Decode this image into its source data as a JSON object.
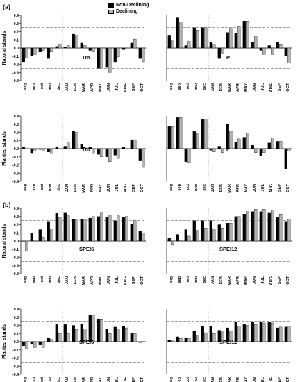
{
  "legend": {
    "non_declining": "Non-Declining",
    "declining": "Declining"
  },
  "section_labels": {
    "a": "(a)",
    "b": "(b)"
  },
  "colors": {
    "non_declining": "#000000",
    "declining": "#b3b3b3",
    "reference_line": "#444444",
    "axis": "#000000"
  },
  "chart_data": [
    {
      "type": "bar",
      "panel": "a-natural-left",
      "ylabel": "Natural stands",
      "annotation": "Tm",
      "categories": [
        "aug",
        "sep",
        "oct",
        "nov",
        "dec",
        "JAN",
        "FEB",
        "MAR",
        "APR",
        "MAY",
        "JUN",
        "JUL",
        "AUG",
        "SEP",
        "OCT"
      ],
      "series": [
        {
          "name": "Non-Declining",
          "values": [
            -0.17,
            -0.1,
            -0.05,
            -0.13,
            0.02,
            0.01,
            0.17,
            0.06,
            -0.03,
            -0.25,
            -0.24,
            -0.17,
            -0.02,
            0.06,
            -0.13
          ]
        },
        {
          "name": "Declining",
          "values": [
            -0.12,
            -0.08,
            -0.03,
            -0.05,
            0.05,
            0.03,
            0.16,
            0.03,
            -0.05,
            -0.26,
            -0.3,
            -0.11,
            -0.01,
            0.11,
            -0.17
          ]
        }
      ],
      "ylim": [
        -0.4,
        0.4
      ],
      "yticks": [
        -0.4,
        -0.3,
        -0.2,
        -0.1,
        0.0,
        0.1,
        0.2,
        0.3,
        0.4
      ],
      "reference_lines": [
        0.25,
        -0.25
      ]
    },
    {
      "type": "bar",
      "panel": "a-natural-right",
      "annotation": "P",
      "categories": [
        "aug",
        "sep",
        "oct",
        "nov",
        "dec",
        "JAN",
        "FEB",
        "MAR",
        "APR",
        "MAY",
        "JUN",
        "JUL",
        "AUG",
        "SEP",
        "OCT"
      ],
      "series": [
        {
          "name": "Non-Declining",
          "values": [
            0.15,
            0.37,
            0.03,
            0.25,
            0.25,
            0.07,
            -0.13,
            0.19,
            0.18,
            0.33,
            0.07,
            -0.03,
            0.03,
            0.07,
            -0.1
          ]
        },
        {
          "name": "Declining",
          "values": [
            0.1,
            0.32,
            0.08,
            0.22,
            0.25,
            0.05,
            -0.07,
            0.24,
            0.26,
            0.33,
            0.14,
            -0.08,
            -0.08,
            0.04,
            -0.18
          ]
        }
      ],
      "ylim": [
        -0.4,
        0.4
      ],
      "reference_lines": [
        0.25,
        -0.25
      ]
    },
    {
      "type": "bar",
      "panel": "a-planted-left",
      "ylabel": "Planted stands",
      "annotation": "Tm",
      "categories": [
        "aug",
        "sep",
        "oct",
        "nov",
        "dec",
        "JAN",
        "FEB",
        "MAR",
        "APR",
        "MAY",
        "JUN",
        "JUL",
        "AUG",
        "SEP",
        "OCT"
      ],
      "series": [
        {
          "name": "Non-Declining",
          "values": [
            0.02,
            -0.06,
            -0.01,
            -0.04,
            0.02,
            0.03,
            0.22,
            0.05,
            0.02,
            -0.07,
            -0.1,
            -0.08,
            0.02,
            0.11,
            -0.15
          ]
        },
        {
          "name": "Declining",
          "values": [
            0.0,
            -0.02,
            -0.03,
            -0.06,
            0.0,
            0.07,
            0.2,
            0.02,
            -0.06,
            -0.1,
            -0.16,
            -0.12,
            0.0,
            0.11,
            -0.23
          ]
        }
      ],
      "ylim": [
        -0.4,
        0.4
      ],
      "yticks": [
        -0.4,
        -0.3,
        -0.2,
        -0.1,
        0.0,
        0.1,
        0.2,
        0.3,
        0.4
      ],
      "reference_lines": [
        0.25,
        -0.25
      ]
    },
    {
      "type": "bar",
      "panel": "a-planted-right",
      "annotation": "P",
      "categories": [
        "aug",
        "sep",
        "oct",
        "nov",
        "dec",
        "JAN",
        "FEB",
        "MAR",
        "APR",
        "MAY",
        "JUN",
        "JUL",
        "AUG",
        "SEP",
        "OCT"
      ],
      "series": [
        {
          "name": "Non-Declining",
          "values": [
            0.27,
            0.38,
            -0.16,
            0.21,
            0.36,
            -0.02,
            0.03,
            0.3,
            0.08,
            0.14,
            0.04,
            -0.09,
            0.07,
            0.09,
            -0.25
          ]
        },
        {
          "name": "Declining",
          "values": [
            0.27,
            0.38,
            -0.17,
            0.19,
            0.36,
            -0.04,
            -0.05,
            0.22,
            0.12,
            0.19,
            -0.05,
            -0.05,
            0.13,
            0.09,
            -0.03
          ]
        }
      ],
      "ylim": [
        -0.4,
        0.4
      ],
      "reference_lines": [
        0.25,
        -0.25
      ]
    },
    {
      "type": "bar",
      "panel": "b-natural-left",
      "ylabel": "Natural stands",
      "annotation": "SPEI6",
      "categories": [
        "aug",
        "sep",
        "oct",
        "nov",
        "dec",
        "JAN",
        "FEB",
        "MAR",
        "APR",
        "MAY",
        "JUN",
        "JUL",
        "AUG",
        "SEP",
        "OCT"
      ],
      "series": [
        {
          "name": "Non-Declining",
          "values": [
            0.0,
            0.1,
            0.14,
            0.24,
            0.34,
            0.35,
            0.27,
            0.27,
            0.28,
            0.3,
            0.29,
            0.25,
            0.29,
            0.21,
            0.12
          ]
        },
        {
          "name": "Declining",
          "values": [
            -0.12,
            0.01,
            0.05,
            0.15,
            0.29,
            0.31,
            0.27,
            0.27,
            0.3,
            0.35,
            0.32,
            0.31,
            0.3,
            0.25,
            0.1
          ]
        }
      ],
      "ylim": [
        -0.4,
        0.4
      ],
      "yticks": [
        -0.4,
        -0.3,
        -0.2,
        -0.1,
        0.0,
        0.1,
        0.2,
        0.3,
        0.4
      ],
      "reference_lines": [
        0.25,
        -0.25
      ]
    },
    {
      "type": "bar",
      "panel": "b-natural-right",
      "annotation": "SPEI12",
      "categories": [
        "aug",
        "sep",
        "oct",
        "nov",
        "dec",
        "JAN",
        "FEB",
        "MAR",
        "APR",
        "MAY",
        "JUN",
        "JUL",
        "AUG",
        "SEP",
        "OCT"
      ],
      "series": [
        {
          "name": "Non-Declining",
          "values": [
            0.04,
            0.08,
            0.14,
            0.25,
            0.25,
            0.25,
            0.2,
            0.22,
            0.3,
            0.33,
            0.36,
            0.36,
            0.35,
            0.29,
            0.24
          ]
        },
        {
          "name": "Declining",
          "values": [
            -0.05,
            0.01,
            0.06,
            0.13,
            0.16,
            0.14,
            0.16,
            0.22,
            0.3,
            0.36,
            0.39,
            0.39,
            0.38,
            0.33,
            0.27
          ]
        }
      ],
      "ylim": [
        -0.4,
        0.4
      ],
      "reference_lines": [
        0.25,
        -0.25
      ]
    },
    {
      "type": "bar",
      "panel": "b-planted-left",
      "ylabel": "Planted stands",
      "annotation": "SPEI6",
      "categories": [
        "aug",
        "sep",
        "oct",
        "nov",
        "dec",
        "JAN",
        "FEB",
        "MAR",
        "APR",
        "MAY",
        "JUN",
        "JUL",
        "AUG",
        "SEP",
        "OCT"
      ],
      "series": [
        {
          "name": "Non-Declining",
          "values": [
            -0.05,
            -0.03,
            -0.04,
            0.05,
            0.21,
            0.21,
            0.2,
            0.22,
            0.33,
            0.28,
            0.16,
            0.18,
            0.19,
            0.1,
            -0.01
          ]
        },
        {
          "name": "Declining",
          "values": [
            -0.08,
            -0.07,
            -0.07,
            0.03,
            0.1,
            0.1,
            0.15,
            0.16,
            0.33,
            0.27,
            0.1,
            0.16,
            0.17,
            0.1,
            0.0
          ]
        }
      ],
      "ylim": [
        -0.4,
        0.4
      ],
      "yticks": [
        -0.4,
        -0.3,
        -0.2,
        -0.1,
        0.0,
        0.1,
        0.2,
        0.3,
        0.4
      ],
      "reference_lines": [
        0.25,
        -0.25
      ]
    },
    {
      "type": "bar",
      "panel": "b-planted-right",
      "annotation": "SPEI12",
      "categories": [
        "aug",
        "sep",
        "oct",
        "nov",
        "dec",
        "JAN",
        "FEB",
        "MAR",
        "APR",
        "MAY",
        "JUN",
        "JUL",
        "AUG",
        "SEP",
        "OCT"
      ],
      "series": [
        {
          "name": "Non-Declining",
          "values": [
            0.02,
            0.06,
            0.05,
            0.13,
            0.19,
            0.19,
            0.14,
            0.17,
            0.24,
            0.21,
            0.24,
            0.24,
            0.24,
            0.17,
            0.18
          ]
        },
        {
          "name": "Declining",
          "values": [
            0.01,
            0.04,
            0.04,
            0.08,
            0.11,
            0.1,
            0.12,
            0.13,
            0.19,
            0.2,
            0.21,
            0.23,
            0.23,
            0.18,
            0.19
          ]
        }
      ],
      "ylim": [
        -0.4,
        0.4
      ],
      "reference_lines": [
        0.25,
        -0.25
      ]
    }
  ]
}
